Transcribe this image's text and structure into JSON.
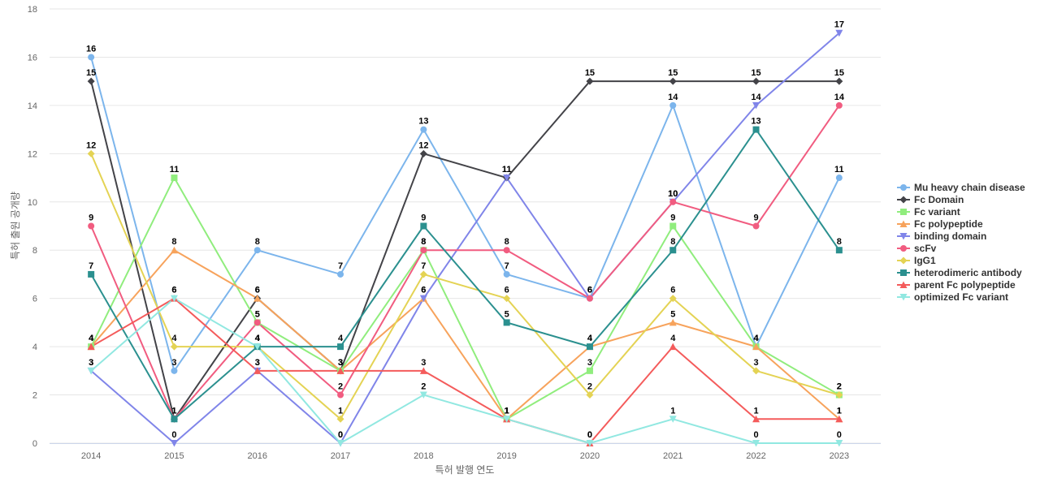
{
  "chart_data": {
    "type": "line",
    "title": "",
    "xlabel": "특허 발행 연도",
    "ylabel": "특허 출원 공개량",
    "ylim": [
      0,
      18
    ],
    "yticks": [
      0,
      2,
      4,
      6,
      8,
      10,
      12,
      14,
      16,
      18
    ],
    "grid": true,
    "legend_position": "right",
    "categories": [
      "2014",
      "2015",
      "2016",
      "2017",
      "2018",
      "2019",
      "2020",
      "2021",
      "2022",
      "2023"
    ],
    "series": [
      {
        "name": "Mu heavy chain disease",
        "color": "#7cb5ec",
        "marker": "circle",
        "values": [
          16,
          3,
          8,
          7,
          13,
          7,
          6,
          14,
          4,
          11
        ]
      },
      {
        "name": "Fc Domain",
        "color": "#434348",
        "marker": "diamond",
        "values": [
          15,
          1,
          6,
          3,
          12,
          11,
          15,
          15,
          15,
          15
        ]
      },
      {
        "name": "Fc variant",
        "color": "#90ed7d",
        "marker": "square",
        "values": [
          4,
          11,
          5,
          3,
          8,
          1,
          3,
          9,
          4,
          2
        ]
      },
      {
        "name": "Fc polypeptide",
        "color": "#f7a35c",
        "marker": "triangle",
        "values": [
          4,
          8,
          6,
          3,
          6,
          1,
          4,
          5,
          4,
          1
        ]
      },
      {
        "name": "binding domain",
        "color": "#8085e9",
        "marker": "triangle-down",
        "values": [
          3,
          0,
          3,
          0,
          6,
          11,
          6,
          10,
          14,
          17
        ]
      },
      {
        "name": "scFv",
        "color": "#f15c80",
        "marker": "circle",
        "values": [
          9,
          1,
          5,
          2,
          8,
          8,
          6,
          10,
          9,
          14
        ]
      },
      {
        "name": "IgG1",
        "color": "#e4d354",
        "marker": "diamond",
        "values": [
          12,
          4,
          4,
          1,
          7,
          6,
          2,
          6,
          3,
          2
        ]
      },
      {
        "name": "heterodimeric antibody",
        "color": "#2b908f",
        "marker": "square",
        "values": [
          7,
          1,
          4,
          4,
          9,
          5,
          4,
          8,
          13,
          8
        ]
      },
      {
        "name": "parent Fc polypeptide",
        "color": "#f45b5b",
        "marker": "triangle",
        "values": [
          4,
          6,
          3,
          3,
          3,
          1,
          0,
          4,
          1,
          1
        ]
      },
      {
        "name": "optimized Fc variant",
        "color": "#91e8e1",
        "marker": "triangle-down",
        "values": [
          3,
          6,
          4,
          0,
          2,
          1,
          0,
          1,
          0,
          0
        ]
      }
    ]
  }
}
